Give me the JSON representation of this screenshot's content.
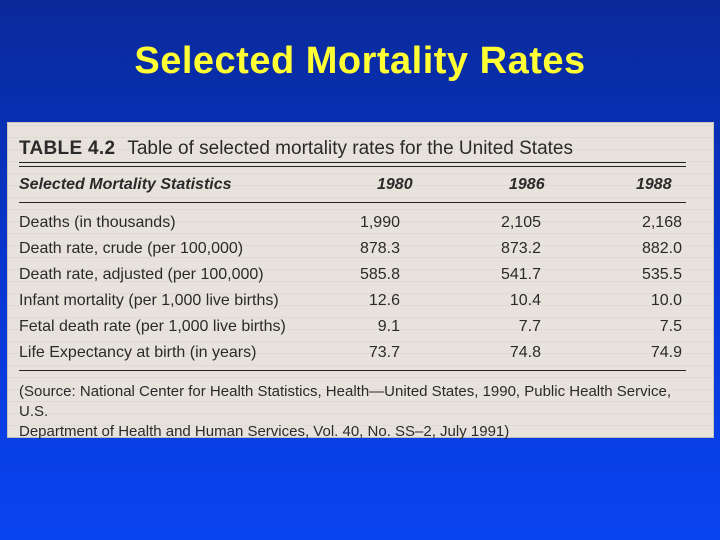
{
  "slide": {
    "title": "Selected Mortality Rates"
  },
  "table": {
    "number": "TABLE 4.2",
    "caption": "Table of selected mortality rates for the United States",
    "columns": [
      "Selected Mortality Statistics",
      "1980",
      "1986",
      "1988"
    ],
    "rows": [
      [
        "Deaths (in thousands)",
        "1,990",
        "2,105",
        "2,168"
      ],
      [
        "Death rate, crude (per 100,000)",
        "878.3",
        "873.2",
        "882.0"
      ],
      [
        "Death rate, adjusted (per 100,000)",
        "585.8",
        "541.7",
        "535.5"
      ],
      [
        "Infant mortality (per 1,000 live births)",
        "12.6",
        "10.4",
        "10.0"
      ],
      [
        "Fetal death rate (per 1,000 live births)",
        "9.1",
        "7.7",
        "7.5"
      ],
      [
        "Life Expectancy at birth (in years)",
        "73.7",
        "74.8",
        "74.9"
      ]
    ],
    "source_line1": "(Source: National Center for Health Statistics, Health—United States, 1990, Public Health Service, U.S.",
    "source_line2": "Department of Health and Human Services, Vol. 40, No. SS–2, July 1991)"
  }
}
